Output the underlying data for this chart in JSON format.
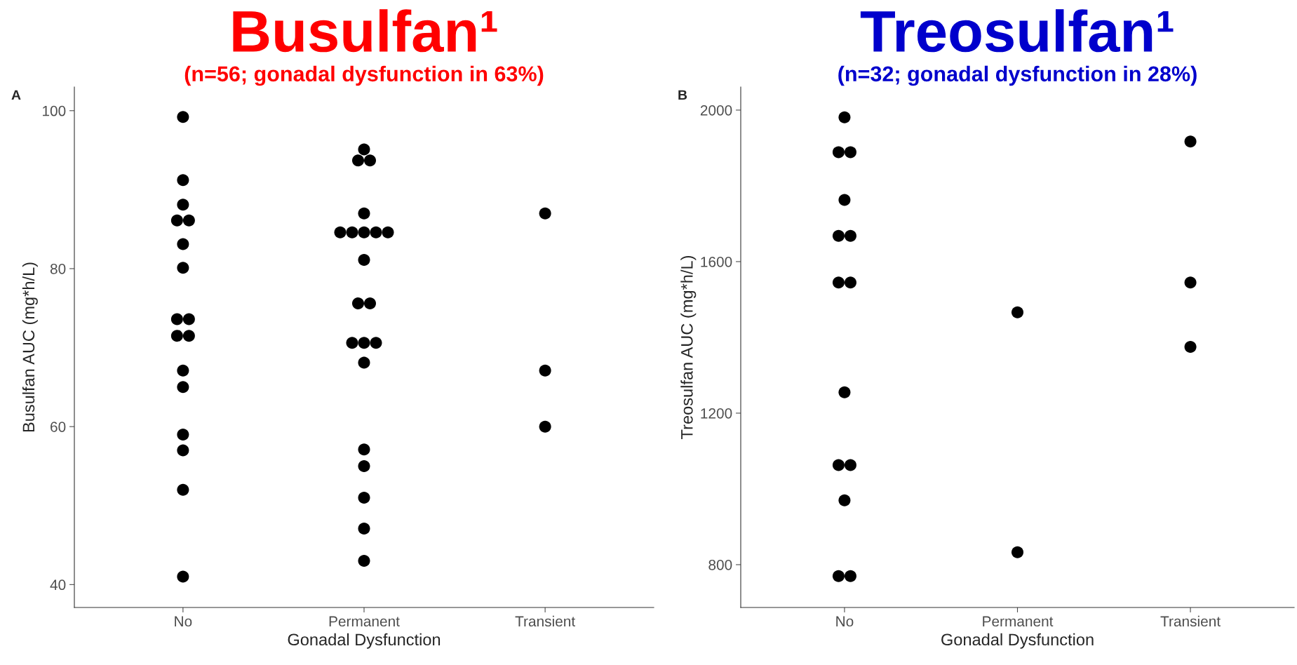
{
  "chart_data": [
    {
      "type": "scatter",
      "title": "Busulfan¹",
      "subtitle": "(n=56; gonadal dysfunction in 63%)",
      "xlabel": "Gonadal Dysfunction",
      "ylabel": "Busulfan AUC (mg*h/L)",
      "annotations": [
        "A"
      ],
      "categories": [
        "No",
        "Permanent",
        "Transient"
      ],
      "series": [
        {
          "color": "#000000",
          "x": [
            "No",
            "No",
            "No",
            "No",
            "No",
            "No",
            "No",
            "No",
            "No",
            "No",
            "No",
            "No",
            "No",
            "No",
            "No",
            "No",
            "No",
            "Permanent",
            "Permanent",
            "Permanent",
            "Permanent",
            "Permanent",
            "Permanent",
            "Permanent",
            "Permanent",
            "Permanent",
            "Permanent",
            "Permanent",
            "Permanent",
            "Permanent",
            "Permanent",
            "Permanent",
            "Permanent",
            "Permanent",
            "Permanent",
            "Permanent",
            "Permanent",
            "Permanent",
            "Transient",
            "Transient",
            "Transient"
          ],
          "values": [
            99.2,
            91.2,
            88.1,
            86.1,
            86.1,
            83.1,
            80.1,
            73.6,
            73.6,
            71.5,
            71.5,
            67.1,
            65.0,
            59.0,
            57.0,
            52.0,
            41.0,
            95.1,
            93.7,
            93.7,
            87.0,
            84.6,
            84.6,
            84.6,
            84.6,
            84.6,
            81.1,
            75.6,
            75.6,
            70.6,
            70.6,
            70.6,
            68.1,
            57.1,
            55.0,
            51.0,
            47.1,
            43.0,
            87.0,
            67.1,
            60.0
          ]
        }
      ],
      "ylim": [
        37.1,
        103.0
      ],
      "yticks": [
        40,
        60,
        80,
        100
      ],
      "grid": false
    },
    {
      "type": "scatter",
      "title": "Treosulfan¹",
      "subtitle": "(n=32; gonadal dysfunction in 28%)",
      "xlabel": "Gonadal Dysfunction",
      "ylabel": "Treosulfan AUC (mg*h/L)",
      "annotations": [
        "B"
      ],
      "categories": [
        "No",
        "Permanent",
        "Transient"
      ],
      "series": [
        {
          "color": "#000000",
          "x": [
            "No",
            "No",
            "No",
            "No",
            "No",
            "No",
            "No",
            "No",
            "No",
            "No",
            "No",
            "No",
            "No",
            "No",
            "Permanent",
            "Permanent",
            "Transient",
            "Transient",
            "Transient"
          ],
          "values": [
            1981,
            1889,
            1889,
            1763,
            1668,
            1668,
            1545,
            1545,
            1255,
            1063,
            1063,
            970,
            770,
            770,
            1466,
            833,
            1917,
            1545,
            1375
          ]
        }
      ],
      "ylim": [
        687,
        2061
      ],
      "yticks": [
        800,
        1200,
        1600,
        2000
      ],
      "grid": false
    }
  ]
}
